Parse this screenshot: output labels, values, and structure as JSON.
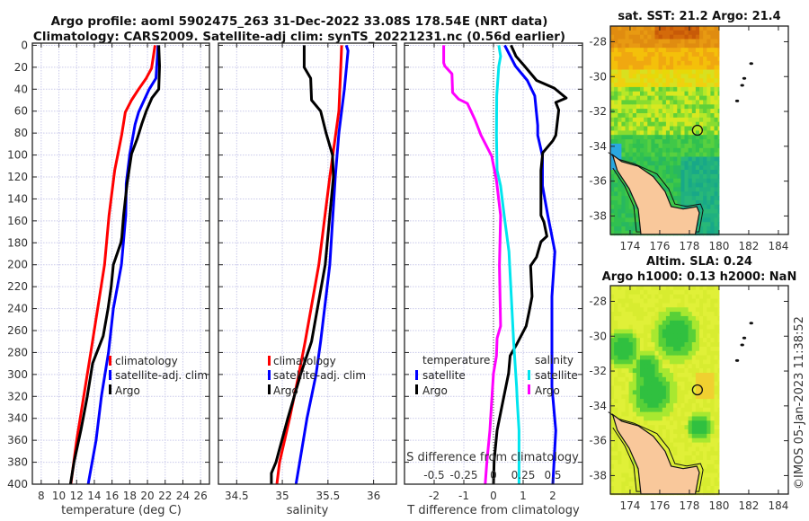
{
  "title": {
    "line1": "Argo profile: aoml 5902475_263 31-Dec-2022 33.08S 178.54E (NRT data)",
    "line2": "Climatology: CARS2009. Satellite-adj clim: synTS_20221231.nc (0.56d earlier)"
  },
  "chart_data": [
    {
      "type": "line",
      "xlabel": "temperature (deg C)",
      "ylabel": "depth",
      "xlim": [
        7,
        27
      ],
      "ylim": [
        400,
        -2
      ],
      "xticks": [
        8,
        10,
        12,
        14,
        16,
        18,
        20,
        22,
        24,
        26
      ],
      "yticks": [
        0,
        20,
        40,
        60,
        80,
        100,
        120,
        140,
        160,
        180,
        200,
        220,
        240,
        260,
        280,
        300,
        320,
        340,
        360,
        380,
        400
      ],
      "grid": true,
      "legend": {
        "position": "center-right",
        "entries": [
          "climatology",
          "satellite-adj. clim",
          "Argo"
        ]
      },
      "series": [
        {
          "name": "climatology",
          "color": "#ff0000",
          "points": [
            [
              0,
              20.86
            ],
            [
              21,
              20.46
            ],
            [
              30,
              19.86
            ],
            [
              40,
              19.0
            ],
            [
              50,
              18.2
            ],
            [
              61,
              17.5
            ],
            [
              81,
              17.1
            ],
            [
              114,
              16.3
            ],
            [
              155,
              15.66
            ],
            [
              200,
              15.15
            ],
            [
              280,
              13.6
            ],
            [
              360,
              12.0
            ],
            [
              400,
              11.35
            ]
          ]
        },
        {
          "name": "satellite-adj. clim",
          "color": "#0000ff",
          "points": [
            [
              0,
              21.2
            ],
            [
              30,
              20.96
            ],
            [
              40,
              20.2
            ],
            [
              61,
              19.0
            ],
            [
              72,
              18.6
            ],
            [
              99,
              18.0
            ],
            [
              126,
              17.6
            ],
            [
              155,
              17.55
            ],
            [
              200,
              17.06
            ],
            [
              240,
              16.15
            ],
            [
              280,
              15.6
            ],
            [
              320,
              14.8
            ],
            [
              360,
              14.2
            ],
            [
              400,
              13.3
            ]
          ]
        },
        {
          "name": "Argo",
          "color": "#000000",
          "points": [
            [
              0,
              21.27
            ],
            [
              19,
              21.37
            ],
            [
              40,
              21.27
            ],
            [
              48,
              20.5
            ],
            [
              60,
              19.86
            ],
            [
              72,
              19.35
            ],
            [
              85,
              18.85
            ],
            [
              99,
              18.2
            ],
            [
              126,
              17.7
            ],
            [
              155,
              17.3
            ],
            [
              175,
              17.1
            ],
            [
              180,
              17.0
            ],
            [
              200,
              16.15
            ],
            [
              220,
              15.9
            ],
            [
              240,
              15.55
            ],
            [
              265,
              15.0
            ],
            [
              290,
              13.8
            ],
            [
              320,
              13.2
            ],
            [
              350,
              12.5
            ],
            [
              380,
              11.7
            ],
            [
              400,
              11.3
            ]
          ]
        }
      ]
    },
    {
      "type": "line",
      "xlabel": "salinity",
      "ylabel": "depth",
      "xlim": [
        34.3,
        36.25
      ],
      "ylim": [
        400,
        -2
      ],
      "xticks": [
        34.5,
        35,
        35.5,
        36
      ],
      "grid": true,
      "legend": {
        "position": "center-right",
        "entries": [
          "climatology",
          "satellite-adj. clim",
          "Argo"
        ]
      },
      "series": [
        {
          "name": "climatology",
          "color": "#ff0000",
          "points": [
            [
              0,
              35.65
            ],
            [
              20,
              35.64
            ],
            [
              60,
              35.62
            ],
            [
              120,
              35.52
            ],
            [
              200,
              35.4
            ],
            [
              270,
              35.25
            ],
            [
              300,
              35.18
            ],
            [
              340,
              35.08
            ],
            [
              380,
              34.97
            ],
            [
              400,
              34.94
            ]
          ]
        },
        {
          "name": "satellite-adj. clim",
          "color": "#0000ff",
          "points": [
            [
              0,
              35.7
            ],
            [
              5,
              35.72
            ],
            [
              40,
              35.68
            ],
            [
              80,
              35.62
            ],
            [
              120,
              35.58
            ],
            [
              200,
              35.52
            ],
            [
              270,
              35.42
            ],
            [
              300,
              35.37
            ],
            [
              340,
              35.27
            ],
            [
              380,
              35.19
            ],
            [
              400,
              35.15
            ]
          ]
        },
        {
          "name": "Argo",
          "color": "#000000",
          "points": [
            [
              0,
              35.24
            ],
            [
              20,
              35.24
            ],
            [
              30,
              35.31
            ],
            [
              50,
              35.32
            ],
            [
              60,
              35.42
            ],
            [
              80,
              35.48
            ],
            [
              100,
              35.55
            ],
            [
              120,
              35.56
            ],
            [
              200,
              35.47
            ],
            [
              270,
              35.32
            ],
            [
              300,
              35.2
            ],
            [
              340,
              35.06
            ],
            [
              380,
              34.93
            ],
            [
              390,
              34.88
            ],
            [
              400,
              34.88
            ]
          ]
        }
      ]
    },
    {
      "type": "line",
      "xlabel": "T difference from climatology",
      "x2label": "S difference from climatology",
      "ylabel": "depth",
      "xlim": [
        -3,
        3
      ],
      "x2lim": [
        -1.5,
        1.5
      ],
      "ylim": [
        400,
        -2
      ],
      "xticks": [
        -2,
        -1,
        0,
        1,
        2
      ],
      "x2ticks": [
        "-0.5",
        "-0.25",
        "0",
        "0.25",
        "0.5"
      ],
      "x2tick_values": [
        -0.5,
        -0.25,
        0,
        0.25,
        0.5
      ],
      "grid": true,
      "legend": {
        "position": "lower",
        "temperature_header": "temperature",
        "salinity_header": "salinity",
        "entries": [
          "satellite",
          "Argo",
          "satellite",
          "Argo"
        ]
      },
      "series": [
        {
          "name": "temperature satellite",
          "axis": "T",
          "color": "#0000ff",
          "points": [
            [
              0,
              0.38
            ],
            [
              19,
              0.74
            ],
            [
              32,
              1.14
            ],
            [
              46,
              1.39
            ],
            [
              73,
              1.49
            ],
            [
              82,
              1.49
            ],
            [
              101,
              1.65
            ],
            [
              128,
              1.65
            ],
            [
              155,
              1.83
            ],
            [
              174,
              1.97
            ],
            [
              188,
              2.07
            ],
            [
              229,
              1.97
            ],
            [
              311,
              1.97
            ],
            [
              351,
              2.1
            ],
            [
              400,
              2.0
            ]
          ]
        },
        {
          "name": "temperature Argo",
          "axis": "T",
          "color": "#000000",
          "points": [
            [
              0,
              0.59
            ],
            [
              10,
              0.76
            ],
            [
              19,
              1.05
            ],
            [
              32,
              1.45
            ],
            [
              39,
              2.05
            ],
            [
              48,
              2.45
            ],
            [
              52,
              2.1
            ],
            [
              59,
              2.2
            ],
            [
              70,
              2.15
            ],
            [
              82,
              2.1
            ],
            [
              87,
              2.0
            ],
            [
              98,
              1.66
            ],
            [
              114,
              1.6
            ],
            [
              155,
              1.6
            ],
            [
              161,
              1.7
            ],
            [
              174,
              1.8
            ],
            [
              179,
              1.6
            ],
            [
              193,
              1.45
            ],
            [
              201,
              1.25
            ],
            [
              229,
              1.3
            ],
            [
              243,
              1.2
            ],
            [
              256,
              1.1
            ],
            [
              272,
              0.79
            ],
            [
              283,
              0.56
            ],
            [
              299,
              0.51
            ],
            [
              324,
              0.32
            ],
            [
              351,
              0.12
            ],
            [
              379,
              0.02
            ],
            [
              400,
              0.0
            ]
          ]
        },
        {
          "name": "salinity satellite",
          "axis": "S",
          "color": "#00e5ee",
          "points": [
            [
              0,
              0.09
            ],
            [
              10,
              0.12
            ],
            [
              19,
              0.09
            ],
            [
              46,
              0.055
            ],
            [
              82,
              0.05
            ],
            [
              114,
              0.06
            ],
            [
              128,
              0.12
            ],
            [
              155,
              0.18
            ],
            [
              188,
              0.26
            ],
            [
              229,
              0.3
            ],
            [
              270,
              0.34
            ],
            [
              311,
              0.39
            ],
            [
              324,
              0.4
            ],
            [
              351,
              0.43
            ],
            [
              400,
              0.43
            ]
          ]
        },
        {
          "name": "salinity Argo",
          "axis": "S",
          "color": "#ff00ff",
          "points": [
            [
              0,
              -0.84
            ],
            [
              16,
              -0.84
            ],
            [
              19,
              -0.82
            ],
            [
              26,
              -0.7
            ],
            [
              43,
              -0.69
            ],
            [
              49,
              -0.59
            ],
            [
              53,
              -0.44
            ],
            [
              68,
              -0.31
            ],
            [
              82,
              -0.21
            ],
            [
              101,
              -0.03
            ],
            [
              123,
              0.05
            ],
            [
              155,
              0.12
            ],
            [
              201,
              0.1
            ],
            [
              256,
              0.12
            ],
            [
              267,
              0.06
            ],
            [
              283,
              0.05
            ],
            [
              299,
              0.0
            ],
            [
              324,
              -0.03
            ],
            [
              351,
              -0.06
            ],
            [
              379,
              -0.11
            ],
            [
              400,
              -0.14
            ]
          ]
        }
      ]
    }
  ],
  "maps": [
    {
      "title": "sat. SST: 21.2 Argo: 21.4",
      "kind": "sst",
      "xticks": [
        "174",
        "176",
        "178",
        "180",
        "182",
        "184"
      ],
      "yticks": [
        "-28",
        "-30",
        "-32",
        "-34",
        "-36",
        "-38"
      ],
      "profile_location": {
        "lon": 178.54,
        "lat": -33.08
      }
    },
    {
      "title": "Altim. SLA: 0.24",
      "subtitle": "Argo h1000: 0.13 h2000: NaN",
      "kind": "sla",
      "xticks": [
        "174",
        "176",
        "178",
        "180",
        "182",
        "184"
      ],
      "yticks": [
        "-28",
        "-30",
        "-32",
        "-34",
        "-36",
        "-38"
      ],
      "profile_location": {
        "lon": 178.54,
        "lat": -33.08
      }
    }
  ],
  "copyright": "©IMOS 05-Jan-2023 11:38:52"
}
